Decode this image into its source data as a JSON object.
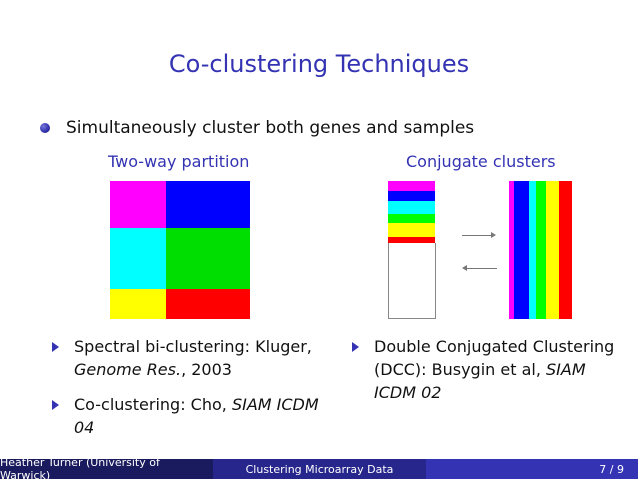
{
  "slide": {
    "title": "Co-clustering Techniques",
    "bullet": "Simultaneously cluster both genes and samples",
    "left_column": {
      "heading": "Two-way partition",
      "items": [
        {
          "text1": "Spectral bi-clustering: Kluger,",
          "italic": "Genome Res.",
          "text2": ", 2003"
        },
        {
          "text1": "Co-clustering: Cho, ",
          "italic": "SIAM ICDM 04",
          "text2": ""
        }
      ]
    },
    "right_column": {
      "heading": "Conjugate clusters",
      "items": [
        {
          "text1": "Double Conjugated Clustering (DCC): Busygin et al, ",
          "italic": "SIAM ICDM 02",
          "text2": ""
        }
      ]
    },
    "colors": {
      "magenta": "#ff00ff",
      "blue": "#0000ff",
      "cyan": "#00ffff",
      "green": "#00ff00",
      "yellow": "#ffff00",
      "red": "#ff0000",
      "accent": "#3333b3"
    }
  },
  "footer": {
    "author": "Heather Turner (University of Warwick)",
    "subject": "Clustering Microarray Data",
    "page": "7 / 9"
  }
}
